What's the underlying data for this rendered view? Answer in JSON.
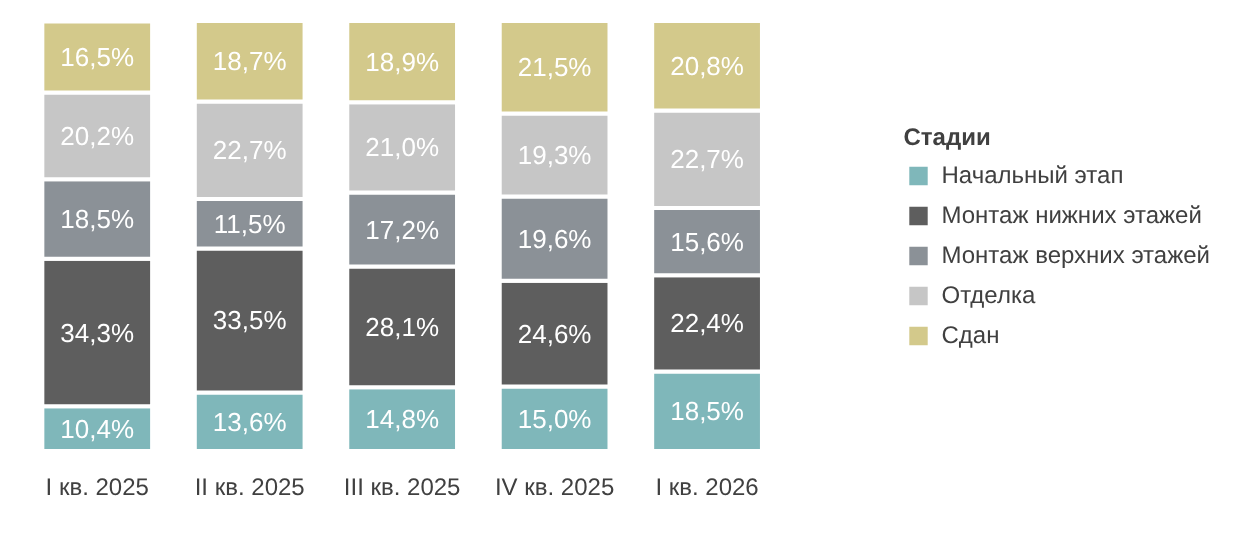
{
  "chart_data": {
    "type": "bar",
    "stacked": true,
    "categories": [
      "I кв. 2025",
      "II кв. 2025",
      "III кв. 2025",
      "IV кв. 2025",
      "I кв. 2026"
    ],
    "legend_title": "Стадии",
    "legend": "right",
    "tick_labels": "x",
    "grid": false,
    "ylim": [
      0,
      100
    ],
    "series": [
      {
        "name": "Начальный этап",
        "color": "#7fb7ba",
        "values": [
          10.4,
          13.6,
          14.8,
          15.0,
          18.5
        ],
        "value_labels": [
          "10,4%",
          "13,6%",
          "14,8%",
          "15,0%",
          "18,5%"
        ]
      },
      {
        "name": "Монтаж нижних этажей",
        "color": "#5e5e5e",
        "values": [
          34.3,
          33.5,
          28.1,
          24.6,
          22.4
        ],
        "value_labels": [
          "34,3%",
          "33,5%",
          "28,1%",
          "24,6%",
          "22,4%"
        ]
      },
      {
        "name": "Монтаж верхних этажей",
        "color": "#8b9197",
        "values": [
          18.5,
          11.5,
          17.2,
          19.6,
          15.6
        ],
        "value_labels": [
          "18,5%",
          "11,5%",
          "17,2%",
          "19,6%",
          "15,6%"
        ]
      },
      {
        "name": "Отделка",
        "color": "#c6c6c6",
        "values": [
          20.2,
          22.7,
          21.0,
          19.3,
          22.7
        ],
        "value_labels": [
          "20,2%",
          "22,7%",
          "21,0%",
          "19,3%",
          "22,7%"
        ]
      },
      {
        "name": "Сдан",
        "color": "#d3c98b",
        "values": [
          16.5,
          18.7,
          18.9,
          21.5,
          20.8
        ],
        "value_labels": [
          "16,5%",
          "18,7%",
          "18,9%",
          "21,5%",
          "20,8%"
        ]
      }
    ]
  }
}
